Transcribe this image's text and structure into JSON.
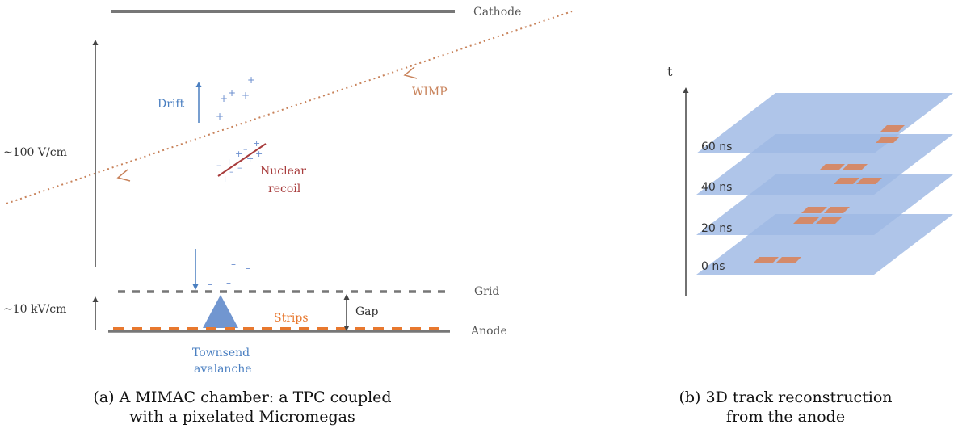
{
  "panel_a": {
    "electrodes": {
      "cathode": "Cathode",
      "grid": "Grid",
      "anode": "Anode"
    },
    "fields": {
      "drift_field": "~100 V/cm",
      "amplification_field": "~10 kV/cm"
    },
    "drift_label": "Drift",
    "wimp_label": "WIMP",
    "nuclear_recoil": {
      "line1": "Nuclear",
      "line2": "recoil"
    },
    "strips_label": "Strips",
    "gap_label": "Gap",
    "townsend": {
      "line1": "Townsend",
      "line2": "avalanche"
    },
    "caption": {
      "line1": "(a) A MIMAC chamber: a TPC coupled",
      "line2": "with a pixelated Micromegas"
    }
  },
  "panel_b": {
    "axis_label": "t",
    "time_slices": [
      "0 ns",
      "20 ns",
      "40 ns",
      "60 ns"
    ],
    "caption": {
      "line1": "(b) 3D track reconstruction",
      "line2": "from the anode"
    }
  },
  "colors": {
    "electrode": "#777777",
    "strip": "#e8782e",
    "drift_blue": "#4a7fc1",
    "avalanche_blue": "#7196d0",
    "wimp": "#c8825a",
    "recoil": "#a83c3c",
    "plane_fill": "#9db8e4",
    "plane_overlap": "#7199d8",
    "pixel_hit": "#d48a6a",
    "label_gray": "#555555",
    "arrow_dark": "#444444"
  }
}
